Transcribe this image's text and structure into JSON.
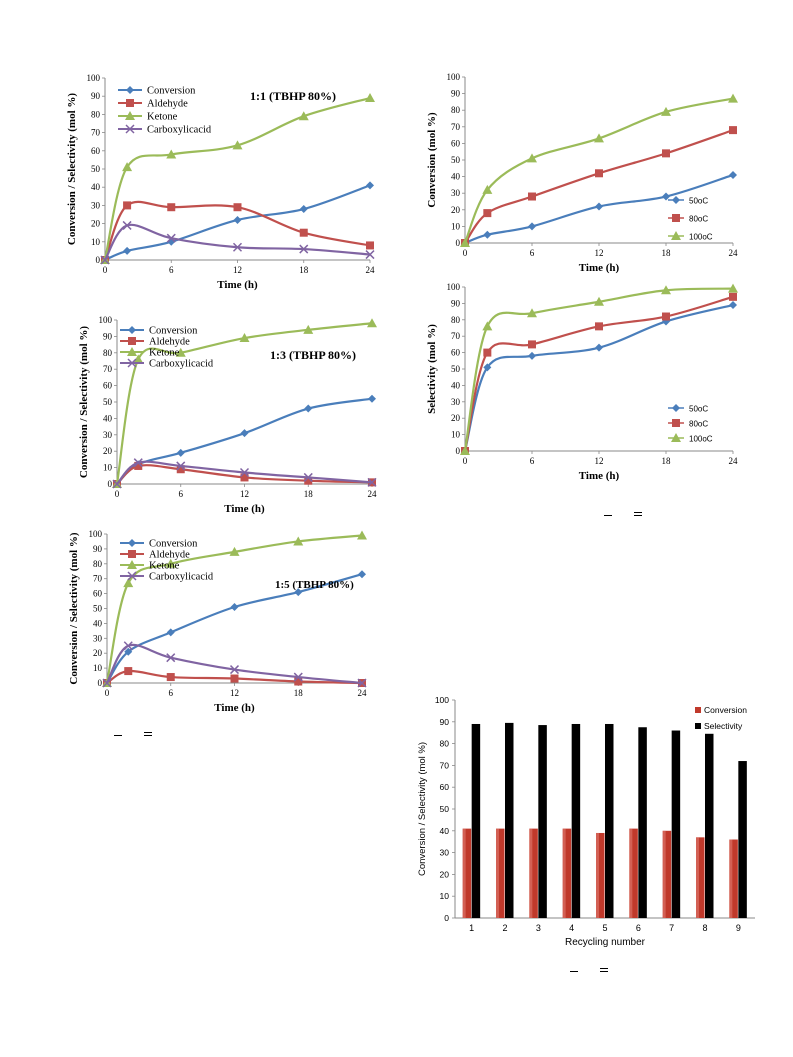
{
  "chart_data": [
    {
      "id": "ratio_1_1",
      "type": "line",
      "title": "1:1 (TBHP 80%)",
      "xlabel": "Time (h)",
      "ylabel": "Conversion / Selectivity (mol %)",
      "xlim": [
        0,
        24
      ],
      "ylim": [
        0,
        100
      ],
      "xticks": [
        0,
        6,
        12,
        18,
        24
      ],
      "yticks": [
        0,
        10,
        20,
        30,
        40,
        50,
        60,
        70,
        80,
        90,
        100
      ],
      "legend": "top-left",
      "x": [
        0,
        2,
        6,
        12,
        18,
        24
      ],
      "series": [
        {
          "name": "Conversion",
          "color": "#4a7ebb",
          "marker": "diamond",
          "values": [
            0,
            5,
            10,
            22,
            28,
            41
          ]
        },
        {
          "name": "Aldehyde",
          "color": "#c0504d",
          "marker": "square",
          "values": [
            0,
            30,
            29,
            29,
            15,
            8
          ]
        },
        {
          "name": "Ketone",
          "color": "#9bbb59",
          "marker": "triangle",
          "values": [
            0,
            51,
            58,
            63,
            79,
            89
          ]
        },
        {
          "name": "Carboxylicacid",
          "color": "#8064a2",
          "marker": "x",
          "values": [
            0,
            19,
            12,
            7,
            6,
            3
          ]
        }
      ]
    },
    {
      "id": "ratio_1_3",
      "type": "line",
      "title": "1:3 (TBHP 80%)",
      "xlabel": "Time (h)",
      "ylabel": "Conversion / Selectivity (mol %)",
      "xlim": [
        0,
        24
      ],
      "ylim": [
        0,
        100
      ],
      "xticks": [
        0,
        6,
        12,
        18,
        24
      ],
      "yticks": [
        0,
        10,
        20,
        30,
        40,
        50,
        60,
        70,
        80,
        90,
        100
      ],
      "legend": "top-left",
      "x": [
        0,
        2,
        6,
        12,
        18,
        24
      ],
      "series": [
        {
          "name": "Conversion",
          "color": "#4a7ebb",
          "marker": "diamond",
          "values": [
            0,
            12,
            19,
            31,
            46,
            52
          ]
        },
        {
          "name": "Aldehyde",
          "color": "#c0504d",
          "marker": "square",
          "values": [
            0,
            11,
            9,
            4,
            2,
            1
          ]
        },
        {
          "name": "Ketone",
          "color": "#9bbb59",
          "marker": "triangle",
          "values": [
            0,
            76,
            80,
            89,
            94,
            98
          ]
        },
        {
          "name": "Carboxylicacid",
          "color": "#8064a2",
          "marker": "x",
          "values": [
            0,
            13,
            11,
            7,
            4,
            1
          ]
        }
      ]
    },
    {
      "id": "ratio_1_5",
      "type": "line",
      "title": "1:5 (TBHP 80%)",
      "xlabel": "Time (h)",
      "ylabel": "Conversion / Selectivity (mol %)",
      "xlim": [
        0,
        24
      ],
      "ylim": [
        0,
        100
      ],
      "xticks": [
        0,
        6,
        12,
        18,
        24
      ],
      "yticks": [
        0,
        10,
        20,
        30,
        40,
        50,
        60,
        70,
        80,
        90,
        100
      ],
      "legend": "top-left",
      "x": [
        0,
        2,
        6,
        12,
        18,
        24
      ],
      "series": [
        {
          "name": "Conversion",
          "color": "#4a7ebb",
          "marker": "diamond",
          "values": [
            0,
            21,
            34,
            51,
            61,
            73
          ]
        },
        {
          "name": "Aldehyde",
          "color": "#c0504d",
          "marker": "square",
          "values": [
            0,
            8,
            4,
            3,
            1,
            0
          ]
        },
        {
          "name": "Ketone",
          "color": "#9bbb59",
          "marker": "triangle",
          "values": [
            0,
            67,
            80,
            88,
            95,
            99
          ]
        },
        {
          "name": "Carboxylicacid",
          "color": "#8064a2",
          "marker": "x",
          "values": [
            0,
            25,
            17,
            9,
            4,
            0
          ]
        }
      ]
    },
    {
      "id": "temp_conversion",
      "type": "line",
      "title": "",
      "xlabel": "Time (h)",
      "ylabel": "Conversion (mol %)",
      "xlim": [
        0,
        24
      ],
      "ylim": [
        0,
        100
      ],
      "xticks": [
        0,
        6,
        12,
        18,
        24
      ],
      "yticks": [
        0,
        10,
        20,
        30,
        40,
        50,
        60,
        70,
        80,
        90,
        100
      ],
      "legend": "bottom-right",
      "x": [
        0,
        2,
        6,
        12,
        18,
        24
      ],
      "series": [
        {
          "name": "50oC",
          "color": "#4a7ebb",
          "marker": "diamond",
          "values": [
            0,
            5,
            10,
            22,
            28,
            41
          ]
        },
        {
          "name": "80oC",
          "color": "#c0504d",
          "marker": "square",
          "values": [
            0,
            18,
            28,
            42,
            54,
            68
          ]
        },
        {
          "name": "100oC",
          "color": "#9bbb59",
          "marker": "triangle",
          "values": [
            0,
            32,
            51,
            63,
            79,
            87
          ]
        }
      ]
    },
    {
      "id": "temp_selectivity",
      "type": "line",
      "title": "",
      "xlabel": "Time (h)",
      "ylabel": "Selectivity (mol %)",
      "xlim": [
        0,
        24
      ],
      "ylim": [
        0,
        100
      ],
      "xticks": [
        0,
        6,
        12,
        18,
        24
      ],
      "yticks": [
        0,
        10,
        20,
        30,
        40,
        50,
        60,
        70,
        80,
        90,
        100
      ],
      "legend": "bottom-right",
      "x": [
        0,
        2,
        6,
        12,
        18,
        24
      ],
      "series": [
        {
          "name": "50oC",
          "color": "#4a7ebb",
          "marker": "diamond",
          "values": [
            0,
            51,
            58,
            63,
            79,
            89
          ]
        },
        {
          "name": "80oC",
          "color": "#c0504d",
          "marker": "square",
          "values": [
            0,
            60,
            65,
            76,
            82,
            94
          ]
        },
        {
          "name": "100oC",
          "color": "#9bbb59",
          "marker": "triangle",
          "values": [
            0,
            76,
            84,
            91,
            98,
            99
          ]
        }
      ]
    },
    {
      "id": "recycling",
      "type": "bar",
      "title": "",
      "xlabel": "Recycling number",
      "ylabel": "Conversion / Selectivity (mol %)",
      "ylim": [
        0,
        100
      ],
      "yticks": [
        0,
        10,
        20,
        30,
        40,
        50,
        60,
        70,
        80,
        90,
        100
      ],
      "legend": "top-right",
      "categories": [
        "1",
        "2",
        "3",
        "4",
        "5",
        "6",
        "7",
        "8",
        "9"
      ],
      "series": [
        {
          "name": "Conversion",
          "color": "#c0392b",
          "values": [
            41,
            41,
            41,
            41,
            39,
            41,
            40,
            37,
            36
          ]
        },
        {
          "name": "Selectivity",
          "color": "#000000",
          "values": [
            89,
            89.5,
            88.5,
            89,
            89,
            87.5,
            86,
            84.5,
            72
          ]
        }
      ]
    }
  ]
}
